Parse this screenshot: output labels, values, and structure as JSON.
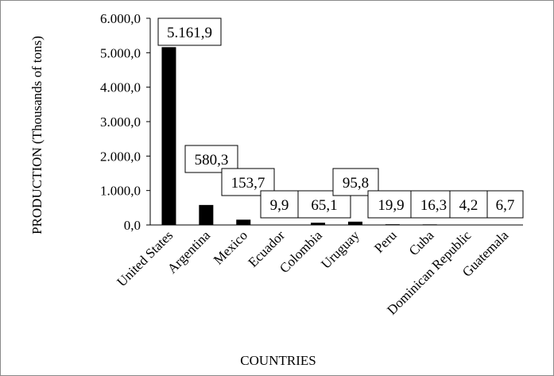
{
  "chart_data": {
    "type": "bar",
    "xlabel": "COUNTRIES",
    "ylabel": "PRODUCTION (Thousands of tons)",
    "ylim": [
      0,
      6000
    ],
    "yticks": [
      0,
      1000,
      2000,
      3000,
      4000,
      5000,
      6000
    ],
    "ytick_labels": [
      "0,0",
      "1.000,0",
      "2.000,0",
      "3.000,0",
      "4.000,0",
      "5.000,0",
      "6.000,0"
    ],
    "grid": false,
    "legend": "none",
    "bar_color": "#000000",
    "categories": [
      "United States",
      "Argentina",
      "Mexico",
      "Ecuador",
      "Colombia",
      "Uruguay",
      "Peru",
      "Cuba",
      "Dominican Republic",
      "Guatemala"
    ],
    "values": [
      5161.9,
      580.3,
      153.7,
      9.9,
      65.1,
      95.8,
      19.9,
      16.3,
      4.2,
      6.7
    ],
    "data_labels": [
      "5.161,9",
      "580,3",
      "153,7",
      "9,9",
      "65,1",
      "95,8",
      "19,9",
      "16,3",
      "4,2",
      "6,7"
    ]
  }
}
